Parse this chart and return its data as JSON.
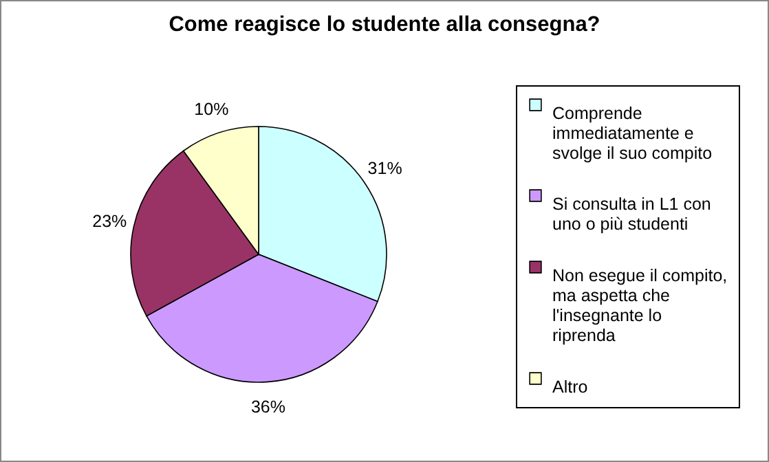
{
  "chart_data": {
    "type": "pie",
    "title": "Come reagisce lo studente alla consegna?",
    "categories": [
      "Comprende immediatamente e svolge il suo compito",
      "Si consulta in L1 con uno o più studenti",
      "Non esegue il compito, ma aspetta che l'insegnante lo riprenda",
      "Altro"
    ],
    "values": [
      31,
      36,
      23,
      10
    ],
    "colors": [
      "#ccffff",
      "#cc99ff",
      "#993366",
      "#ffffcc"
    ],
    "value_labels": [
      "31%",
      "36%",
      "23%",
      "10%"
    ],
    "legend": "right"
  }
}
